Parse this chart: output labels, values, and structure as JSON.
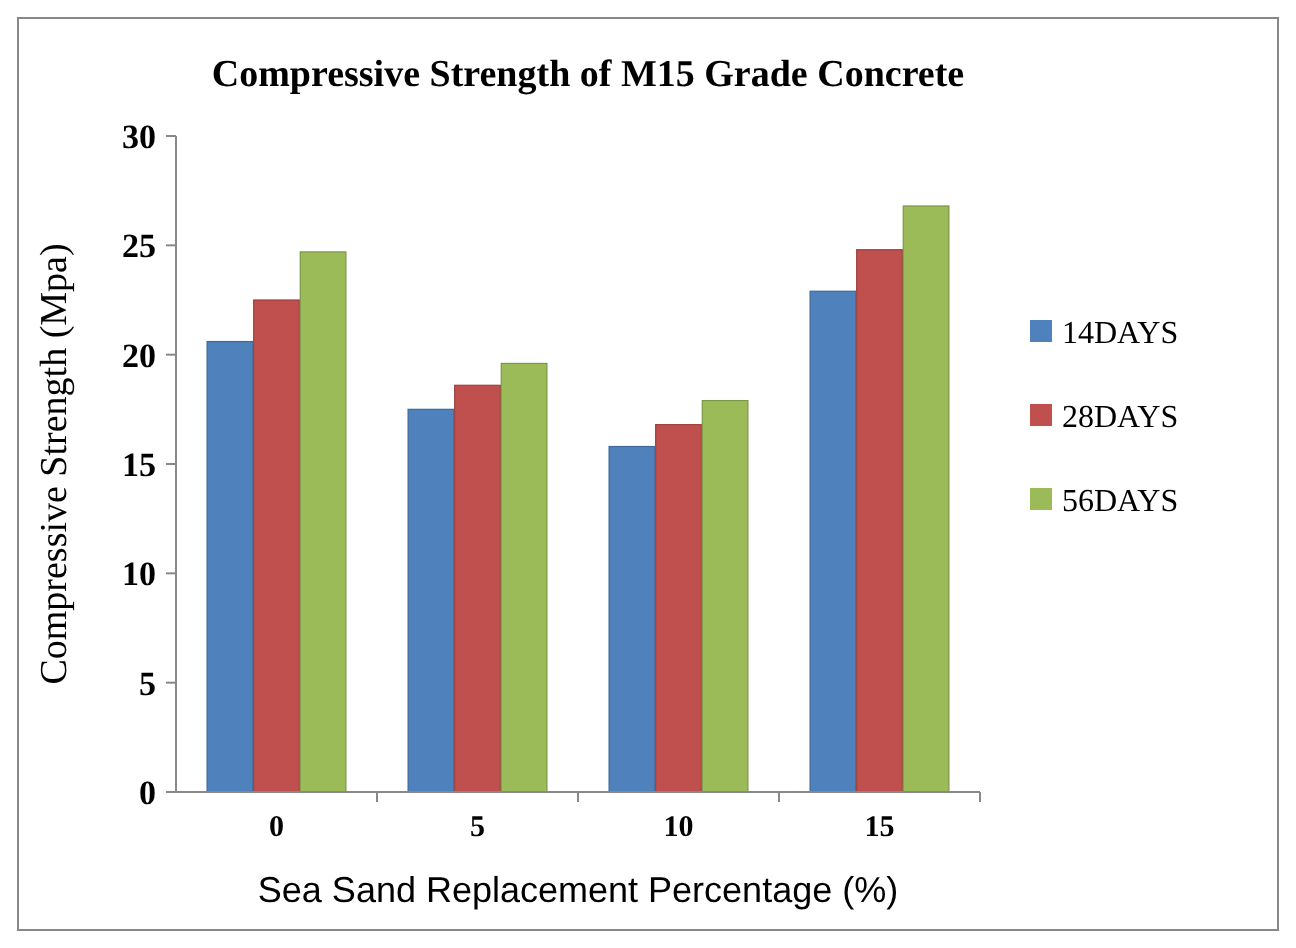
{
  "chart_data": {
    "type": "bar",
    "title": "Compressive Strength of M15 Grade Concrete",
    "xlabel": "Sea Sand Replacement Percentage (%)",
    "ylabel": "Compressive Strength   (Mpa)",
    "categories": [
      "0",
      "5",
      "10",
      "15"
    ],
    "series": [
      {
        "name": "14DAYS",
        "color": "#4f81bd",
        "values": [
          20.6,
          17.5,
          15.8,
          22.9
        ]
      },
      {
        "name": "28DAYS",
        "color": "#c0504d",
        "values": [
          22.5,
          18.6,
          16.8,
          24.8
        ]
      },
      {
        "name": "56DAYS",
        "color": "#9bbb59",
        "values": [
          24.7,
          19.6,
          17.9,
          26.8
        ]
      }
    ],
    "ylim": [
      0,
      30
    ],
    "yticks": [
      0,
      5,
      10,
      15,
      20,
      25,
      30
    ],
    "grid": false,
    "legend": "right"
  }
}
